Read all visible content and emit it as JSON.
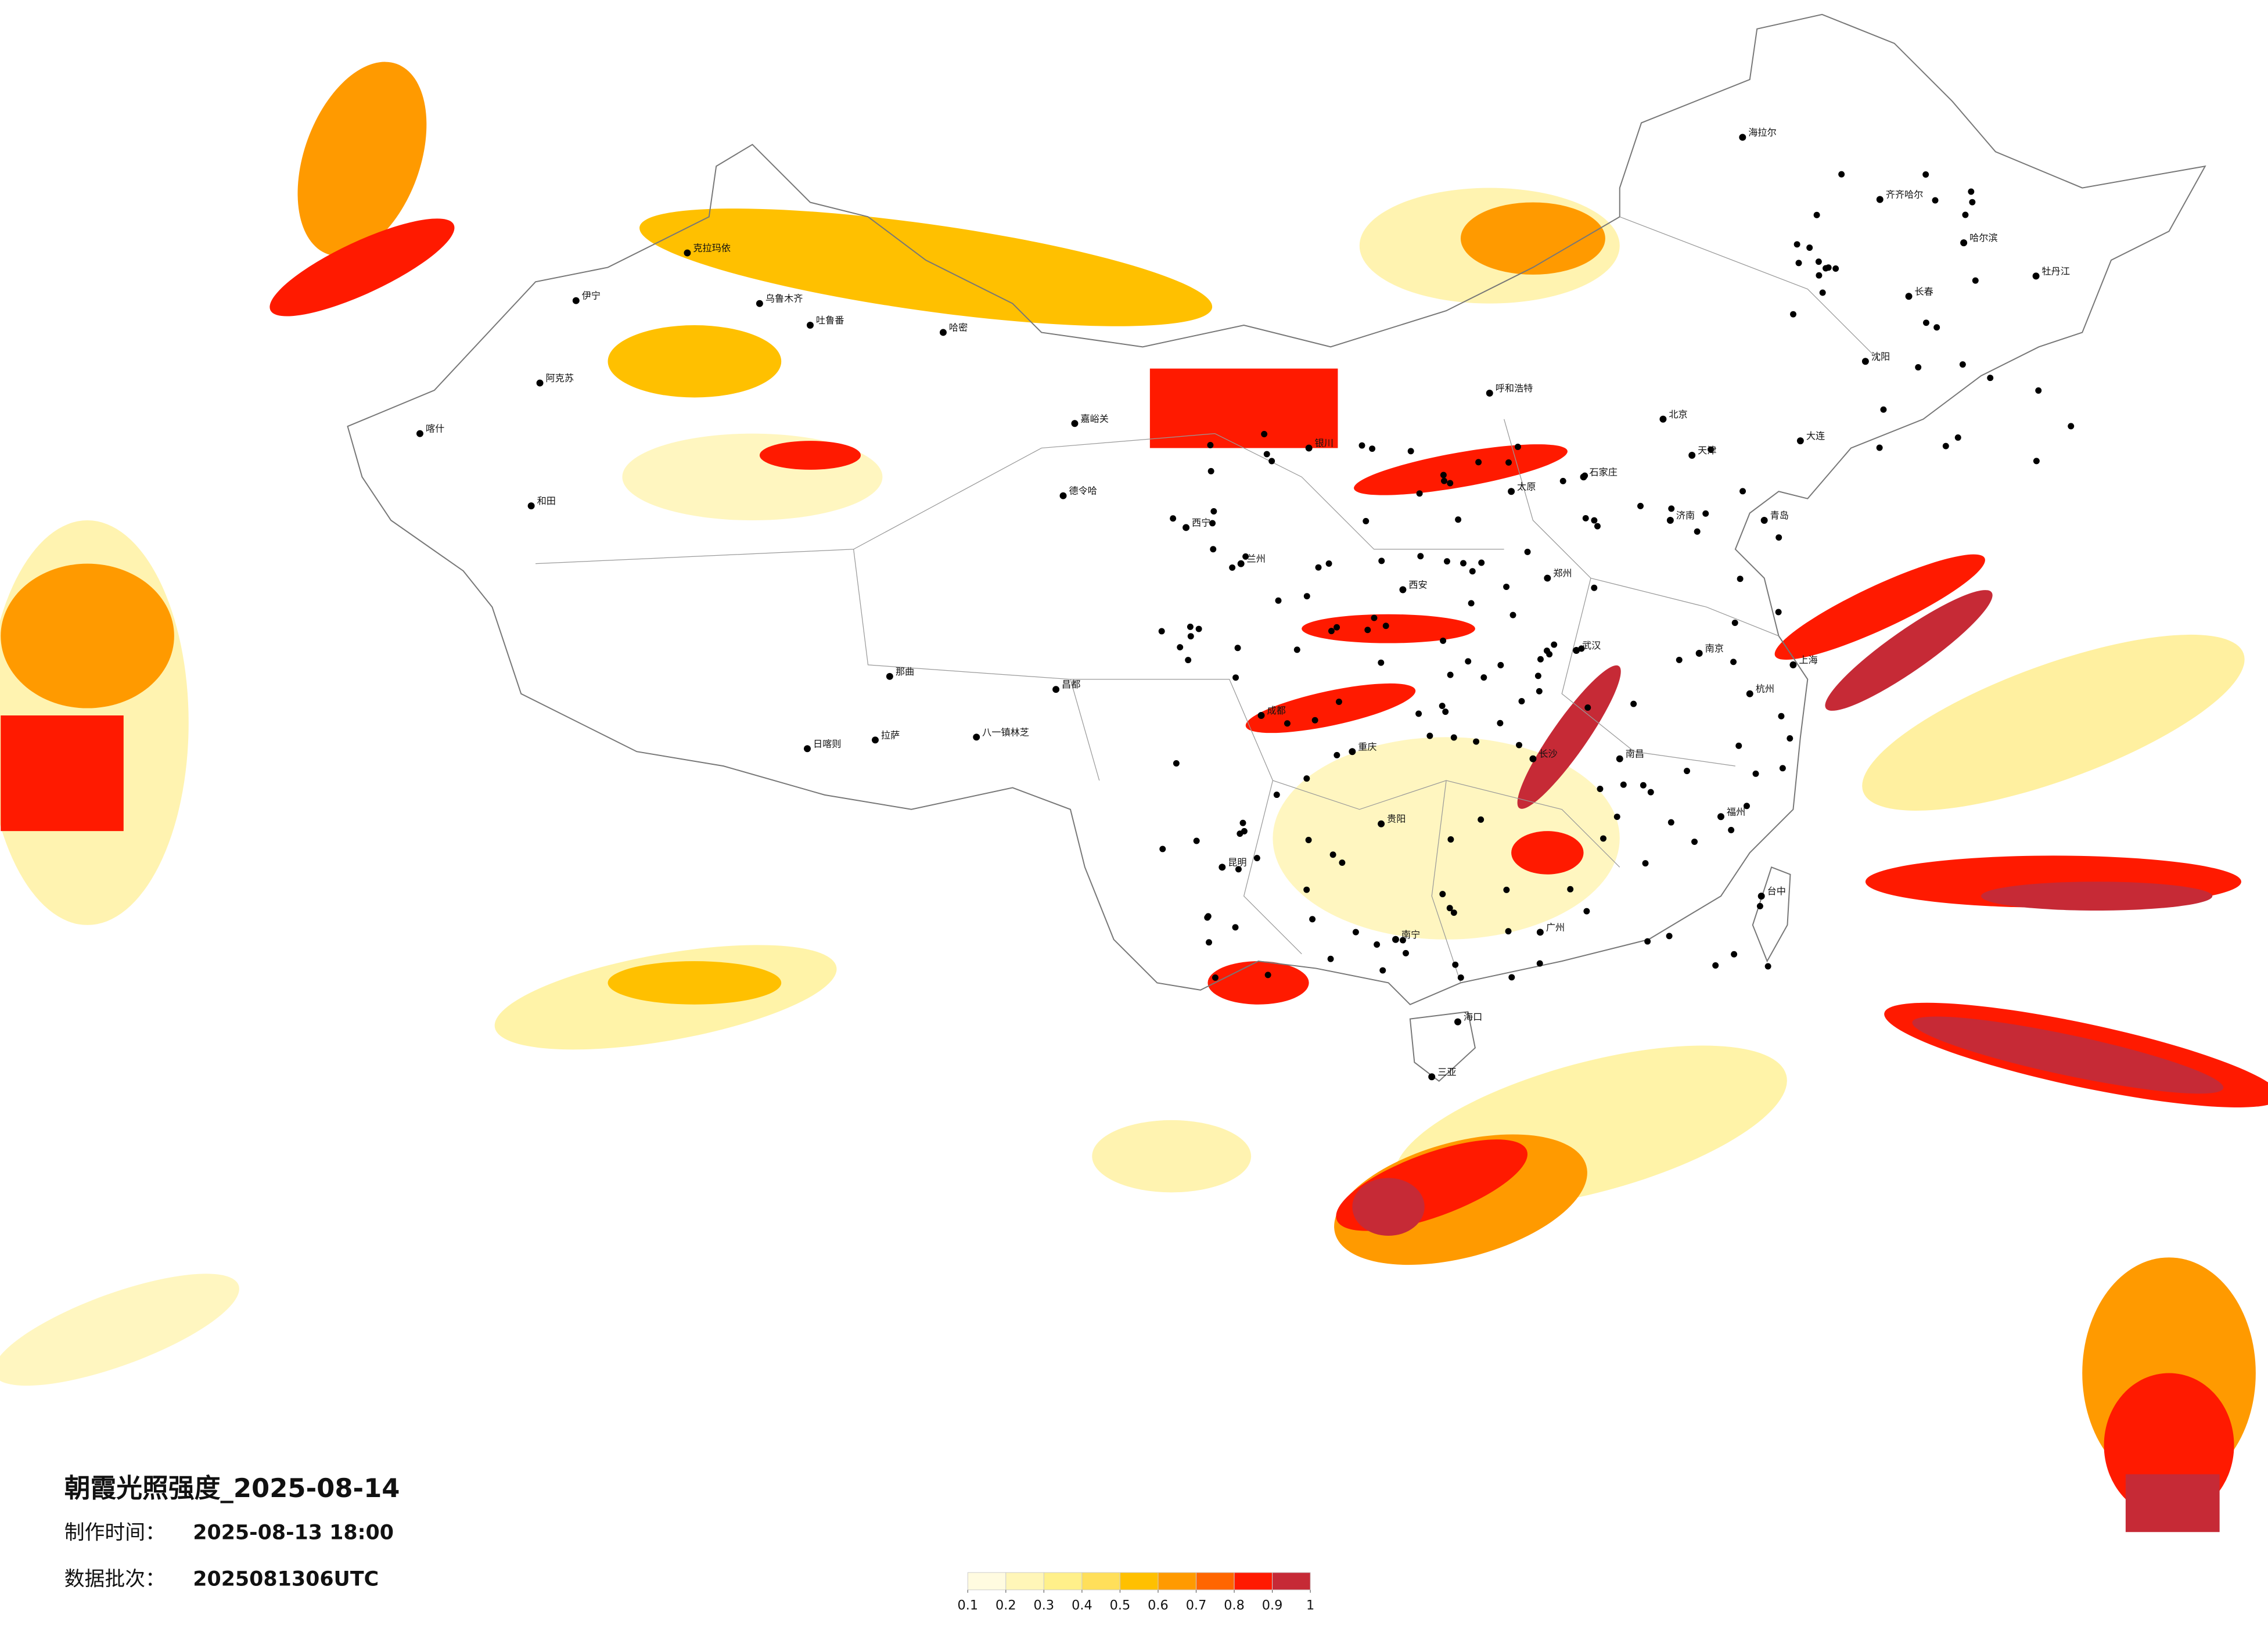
{
  "title": "朝霞光照强度_2025-08-14",
  "production_time": {
    "label": "制作时间：",
    "value": "2025-08-13 18:00"
  },
  "data_batch": {
    "label": "数据批次：",
    "value": "2025081306UTC"
  },
  "legend": {
    "colors": [
      "#fffbe0",
      "#fff6b8",
      "#fff08a",
      "#ffdf5a",
      "#ffc000",
      "#ff9a00",
      "#ff6600",
      "#ff1a00",
      "#c62a36"
    ],
    "ticks": [
      0.1,
      0.2,
      0.3,
      0.4,
      0.5,
      0.6,
      0.7,
      0.8,
      0.9,
      1
    ]
  },
  "cities": [
    "克拉玛依",
    "乌鲁木齐",
    "吐鲁番",
    "哈密",
    "阿克苏",
    "喀什",
    "和田",
    "伊宁",
    "拉萨",
    "日喀则",
    "八一镇林芝",
    "那曲",
    "昌都",
    "德令哈",
    "嘉峪关",
    "西宁",
    "兰州",
    "银川",
    "呼和浩特",
    "北京",
    "天津",
    "石家庄",
    "太原",
    "郑州",
    "西安",
    "成都",
    "重庆",
    "武汉",
    "南京",
    "上海",
    "杭州",
    "长沙",
    "南昌",
    "福州",
    "贵阳",
    "昆明",
    "南宁",
    "广州",
    "海口",
    "三亚",
    "台中",
    "哈尔滨",
    "长春",
    "沈阳",
    "大连",
    "海拉尔",
    "齐齐哈尔",
    "牡丹江",
    "济南",
    "青岛"
  ]
}
